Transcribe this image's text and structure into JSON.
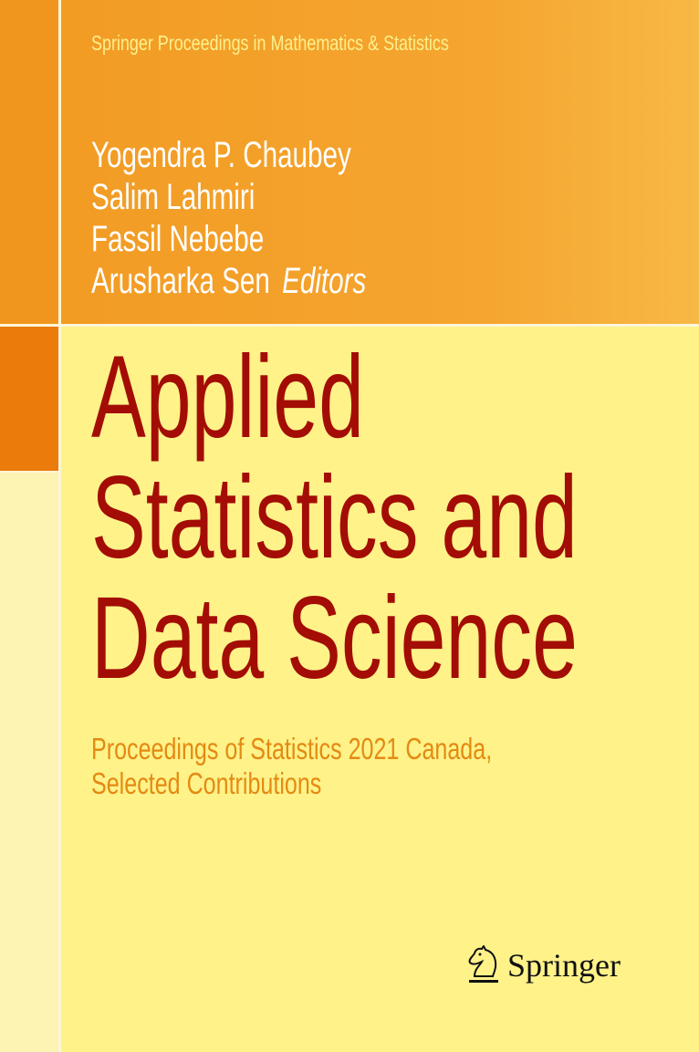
{
  "series": "Springer Proceedings in Mathematics & Statistics",
  "editors": [
    "Yogendra P. Chaubey",
    "Salim Lahmiri",
    "Fassil Nebebe",
    "Arusharka Sen"
  ],
  "editors_label": "Editors",
  "title_lines": [
    "Applied",
    "Statistics and",
    "Data Science"
  ],
  "subtitle_lines": [
    "Proceedings of Statistics 2021 Canada,",
    "Selected Contributions"
  ],
  "publisher": "Springer",
  "logo_icon": "knight-chess-piece-icon",
  "colors": {
    "band": "#f19a22",
    "background": "#fef289",
    "title": "#a30d06",
    "subtitle": "#e48a12",
    "series": "#fdf08c"
  }
}
